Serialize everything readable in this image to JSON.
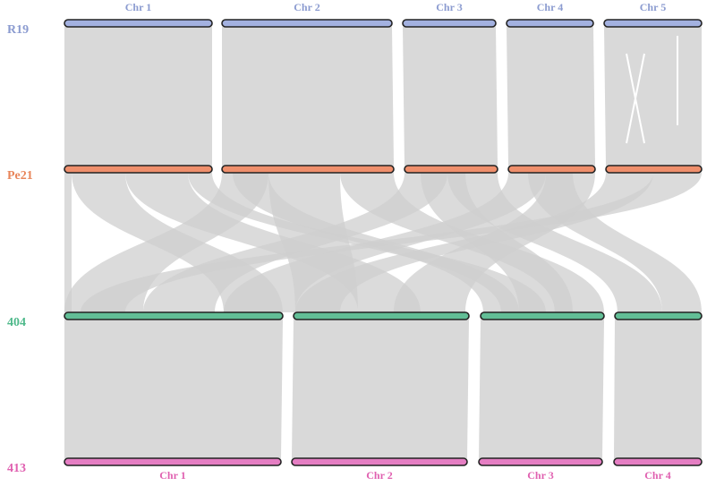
{
  "genomes": [
    {
      "name": "R19",
      "chromosomes": [
        "Chr 1",
        "Chr 2",
        "Chr 3",
        "Chr 4",
        "Chr 5"
      ]
    },
    {
      "name": "Pe21"
    },
    {
      "name": "404"
    },
    {
      "name": "413",
      "chromosomes": [
        "Chr 1",
        "Chr 2",
        "Chr 3",
        "Chr 4"
      ]
    }
  ]
}
